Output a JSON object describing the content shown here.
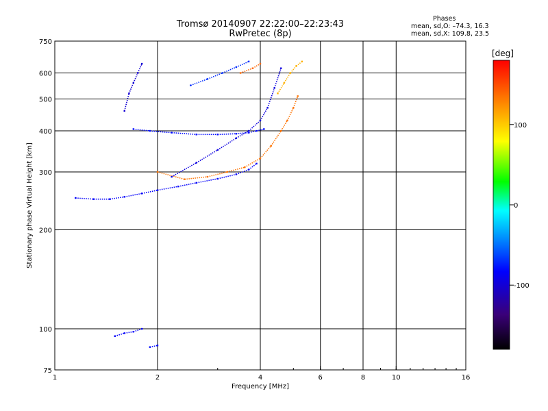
{
  "header": {
    "title": "Tromsø 20140907 22:22:00–22:23:43",
    "subtitle": "RwPretec (8p)"
  },
  "phase_stats": {
    "heading": "Phases",
    "line_o": "mean, sd,O: –74.3, 16.3",
    "line_x": "mean, sd,X: 109.8, 23.5"
  },
  "colorbar": {
    "unit": "[deg]",
    "ticks": [
      {
        "label": "100",
        "value": 100
      },
      {
        "label": "0",
        "value": 0
      },
      {
        "label": "-100",
        "value": -100
      }
    ],
    "range": [
      -180,
      180
    ]
  },
  "chart_data": {
    "type": "scatter",
    "title": "Tromsø 20140907 22:22:00–22:23:43",
    "subtitle": "RwPretec (8p)",
    "xlabel": "Frequency [MHz]",
    "ylabel": "Stationary phase Virtual Height [km]",
    "xscale": "log2",
    "yscale": "log",
    "xlim": [
      1,
      16
    ],
    "ylim": [
      75,
      750
    ],
    "x_ticks": [
      {
        "label": "1",
        "value": 1
      },
      {
        "label": "2",
        "value": 2
      },
      {
        "label": "4",
        "value": 4
      },
      {
        "label": "6",
        "value": 6
      },
      {
        "label": "8",
        "value": 8
      },
      {
        "label": "10",
        "value": 10
      },
      {
        "label": "16",
        "value": 16
      }
    ],
    "y_ticks": [
      {
        "label": "75",
        "value": 75
      },
      {
        "label": "100",
        "value": 100
      },
      {
        "label": "200",
        "value": 200
      },
      {
        "label": "300",
        "value": 300
      },
      {
        "label": "400",
        "value": 400
      },
      {
        "label": "500",
        "value": 500
      },
      {
        "label": "600",
        "value": 600
      },
      {
        "label": "750",
        "value": 750
      }
    ],
    "grid_x": [
      2,
      4,
      6,
      8,
      10
    ],
    "grid_y": [
      100,
      200,
      300,
      400,
      500,
      600
    ],
    "colorbar_label": "[deg]",
    "traces": [
      {
        "freq": [
          1.15,
          1.3,
          1.45,
          1.6,
          1.8,
          2.0,
          2.3,
          2.6,
          3.0,
          3.4,
          3.7,
          3.9
        ],
        "height": [
          250,
          248,
          248,
          252,
          258,
          264,
          271,
          278,
          286,
          295,
          305,
          318
        ],
        "phase": -85
      },
      {
        "freq": [
          2.0,
          2.4,
          2.8,
          3.2,
          3.6,
          4.0,
          4.3,
          4.6,
          4.8,
          5.0,
          5.15
        ],
        "height": [
          300,
          285,
          290,
          300,
          310,
          330,
          360,
          400,
          430,
          470,
          510
        ],
        "phase": 135
      },
      {
        "freq": [
          2.2,
          2.6,
          3.0,
          3.4,
          3.7,
          4.0,
          4.2,
          4.4,
          4.6
        ],
        "height": [
          290,
          320,
          350,
          380,
          400,
          430,
          470,
          540,
          620
        ],
        "phase": -95
      },
      {
        "freq": [
          1.7,
          1.9,
          2.2,
          2.6,
          3.0,
          3.4,
          3.7,
          3.9,
          4.1
        ],
        "height": [
          405,
          400,
          395,
          390,
          390,
          392,
          395,
          400,
          405
        ],
        "phase": -80
      },
      {
        "freq": [
          2.5,
          2.8,
          3.1,
          3.4,
          3.7
        ],
        "height": [
          550,
          575,
          600,
          625,
          650
        ],
        "phase": -70
      },
      {
        "freq": [
          3.5,
          3.8,
          4.0
        ],
        "height": [
          600,
          620,
          640
        ],
        "phase": 140
      },
      {
        "freq": [
          4.5,
          4.7,
          4.9,
          5.1,
          5.3
        ],
        "height": [
          520,
          560,
          600,
          630,
          650
        ],
        "phase": 110
      },
      {
        "freq": [
          1.6,
          1.65,
          1.7,
          1.75,
          1.8
        ],
        "height": [
          460,
          520,
          560,
          600,
          640
        ],
        "phase": -100
      },
      {
        "freq": [
          1.5,
          1.6,
          1.7,
          1.8
        ],
        "height": [
          95,
          97,
          98,
          100
        ],
        "phase": -85
      },
      {
        "freq": [
          1.9,
          2.0
        ],
        "height": [
          88,
          89
        ],
        "phase": -80
      }
    ]
  }
}
